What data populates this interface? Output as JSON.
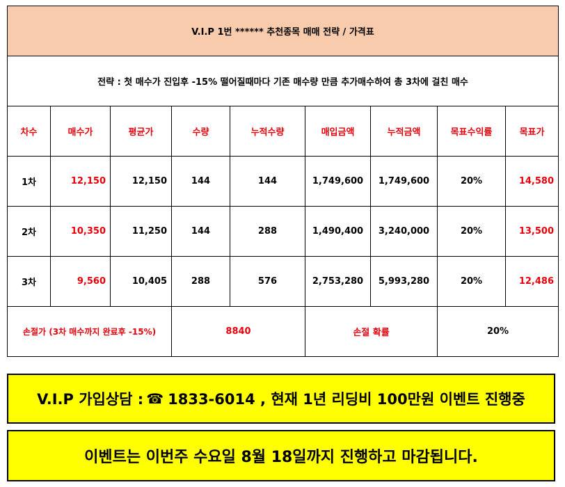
{
  "title": "V.I.P 1번 ****** 추천종목  매매 전략 / 가격표",
  "strategy": "전략 : 첫 매수가 진입후 -15% 떨어질때마다 기존 매수량 만큼 추가매수하여 총 3차에 걸친 매수",
  "columns": [
    "차수",
    "매수가",
    "평균가",
    "수량",
    "누적수량",
    "매입금액",
    "누적금액",
    "목표수익률",
    "목표가"
  ],
  "rows": [
    {
      "round": "1차",
      "buy_price": "12,150",
      "avg_price": "12,150",
      "qty": "144",
      "cum_qty": "144",
      "amount": "1,749,600",
      "cum_amount": "1,749,600",
      "target_rate": "20%",
      "target_price": "14,580"
    },
    {
      "round": "2차",
      "buy_price": "10,350",
      "avg_price": "11,250",
      "qty": "144",
      "cum_qty": "288",
      "amount": "1,490,400",
      "cum_amount": "3,240,000",
      "target_rate": "20%",
      "target_price": "13,500"
    },
    {
      "round": "3차",
      "buy_price": "9,560",
      "avg_price": "10,405",
      "qty": "288",
      "cum_qty": "576",
      "amount": "2,753,280",
      "cum_amount": "5,993,280",
      "target_rate": "20%",
      "target_price": "12,486"
    }
  ],
  "footer": {
    "stop_loss_label": "손절가 (3차 매수까지 완료후 -15%)",
    "stop_loss_value": "8840",
    "stop_prob_label": "손절 확률",
    "stop_prob_value": "20%"
  },
  "banner1": {
    "prefix": "V.I.P 가입상담  :",
    "icon": "phone-icon",
    "suffix": "1833-6014 , 현재 1년 리딩비 100만원 이벤트 진행중"
  },
  "banner2": "이벤트는 이번주 수요일 8월 18일까지 진행하고 마감됩니다."
}
